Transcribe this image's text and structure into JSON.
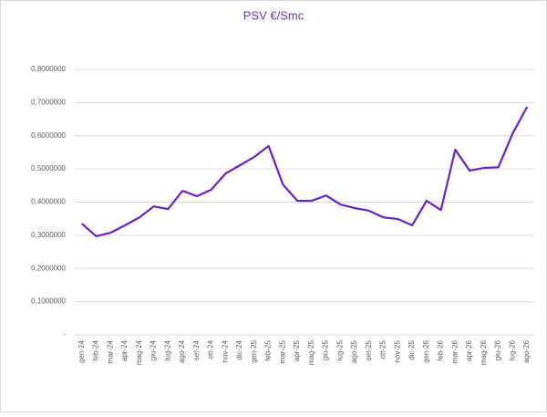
{
  "chart_data": {
    "type": "line",
    "title": "PSV €/Smc",
    "categories": [
      "gen-24",
      "feb-24",
      "mar-24",
      "apr-24",
      "mag-24",
      "giu-24",
      "lug-24",
      "ago-24",
      "set-24",
      "ott-24",
      "nov-24",
      "dic-24",
      "gen-25",
      "feb-25",
      "mar-25",
      "apr-25",
      "mag-25",
      "giu-25",
      "lug-25",
      "ago-25",
      "set-25",
      "ott-25",
      "nov-25",
      "dic-25",
      "gen-26",
      "feb-26",
      "mar-26",
      "apr-26",
      "mag-26",
      "giu-26",
      "lug-26",
      "ago-26"
    ],
    "values": [
      0.335,
      0.297,
      0.308,
      0.33,
      0.354,
      0.387,
      0.379,
      0.434,
      0.418,
      0.437,
      0.486,
      0.511,
      0.536,
      0.569,
      0.453,
      0.404,
      0.404,
      0.42,
      0.393,
      0.382,
      0.374,
      0.354,
      0.349,
      0.33,
      0.404,
      0.376,
      0.558,
      0.495,
      0.503,
      0.505,
      0.607,
      0.687
    ],
    "color": "#6a1fd0",
    "ylim": [
      0,
      0.8
    ],
    "yticks": [
      {
        "value": 0,
        "label": "-"
      },
      {
        "value": 0.1,
        "label": "0,1000000"
      },
      {
        "value": 0.2,
        "label": "0,2000000"
      },
      {
        "value": 0.3,
        "label": "0,3000000"
      },
      {
        "value": 0.4,
        "label": "0,4000000"
      },
      {
        "value": 0.5,
        "label": "0,5000000"
      },
      {
        "value": 0.6,
        "label": "0,6000000"
      },
      {
        "value": 0.7,
        "label": "0,7000000"
      },
      {
        "value": 0.8,
        "label": "0,8000000"
      }
    ],
    "grid": true
  }
}
